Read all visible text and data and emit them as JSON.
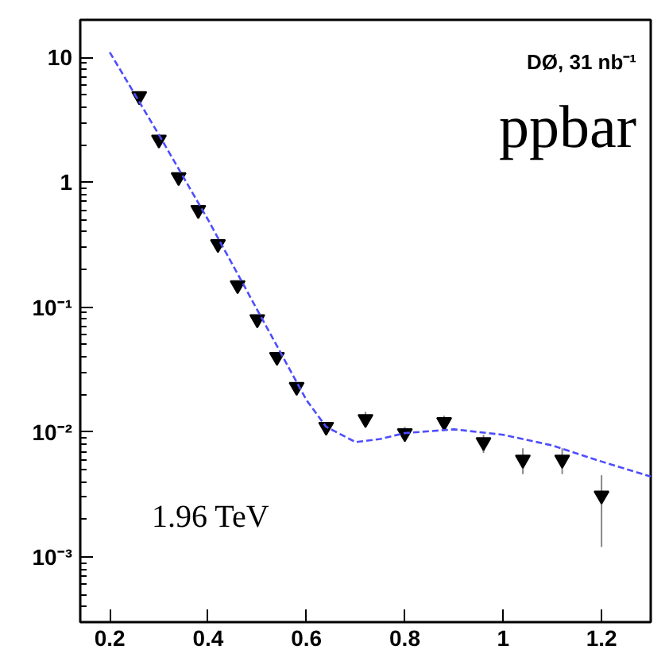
{
  "chart_data": {
    "type": "scatter",
    "log": "y",
    "grid": false,
    "xlim": [
      0.14,
      1.3
    ],
    "ylim": [
      0.0003,
      20
    ],
    "xticks": [
      0.2,
      0.4,
      0.6,
      0.8,
      1,
      1.2
    ],
    "yticks": [
      {
        "value": 0.001,
        "label": "10⁻³"
      },
      {
        "value": 0.01,
        "label": "10⁻²"
      },
      {
        "value": 0.1,
        "label": "10⁻¹"
      },
      1,
      10
    ],
    "annotations": [
      "DØ, 31 nb⁻¹",
      "ppbar",
      "1.96 TeV"
    ],
    "series": [
      {
        "color": "#000000",
        "marker": "triangle",
        "x": [
          0.26,
          0.3,
          0.34,
          0.38,
          0.42,
          0.46,
          0.5,
          0.54,
          0.58,
          0.64,
          0.72,
          0.8,
          0.88,
          0.96,
          1.04,
          1.12,
          1.2
        ],
        "values": [
          4.9,
          2.2,
          1.1,
          0.6,
          0.32,
          0.15,
          0.08,
          0.04,
          0.023,
          0.011,
          0.0127,
          0.0098,
          0.012,
          0.0083,
          0.006,
          0.006,
          0.0031
        ],
        "errors": [
          null,
          null,
          null,
          null,
          null,
          null,
          null,
          null,
          null,
          [
            0.0095,
            0.012
          ],
          [
            0.011,
            0.0145
          ],
          [
            0.0085,
            0.011
          ],
          [
            0.0105,
            0.0135
          ],
          [
            0.0068,
            0.0095
          ],
          [
            0.0046,
            0.0074
          ],
          [
            0.0046,
            0.0074
          ],
          [
            0.0012,
            0.0045
          ]
        ]
      },
      {
        "type": "line",
        "color": "#4d4dff",
        "line_style": "dashed",
        "marker": "none",
        "x": [
          0.2,
          0.3,
          0.4,
          0.5,
          0.6,
          0.64,
          0.7,
          0.75,
          0.8,
          0.9,
          1.0,
          1.1,
          1.2,
          1.3
        ],
        "values": [
          11,
          2.4,
          0.5,
          0.095,
          0.018,
          0.011,
          0.0083,
          0.0088,
          0.0098,
          0.0105,
          0.0095,
          0.0078,
          0.0058,
          0.0044
        ]
      }
    ]
  }
}
